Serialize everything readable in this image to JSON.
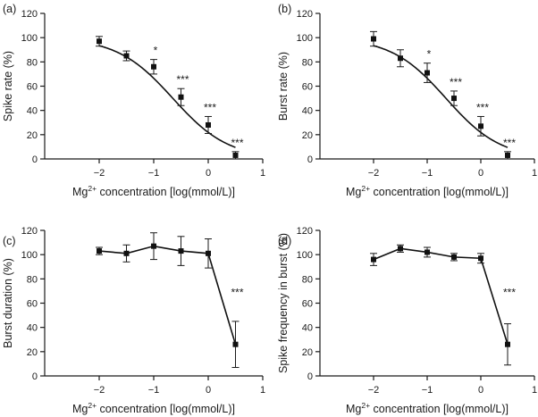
{
  "chart_data": [
    {
      "panel": "(a)",
      "type": "scatter",
      "fit": "sigmoid",
      "xlabel": "Mg²⁺ concentration [log(mmol/L)]",
      "ylabel": "Spike rate (%)",
      "xlim": [
        -3,
        1
      ],
      "ylim": [
        0,
        120
      ],
      "xticks": [
        -2,
        -1,
        0,
        1
      ],
      "yticks": [
        0,
        20,
        40,
        60,
        80,
        100,
        120
      ],
      "x": [
        -2,
        -1.5,
        -1,
        -0.5,
        0,
        0.5
      ],
      "y": [
        97,
        85,
        76,
        51,
        28,
        3
      ],
      "err": [
        4,
        4,
        6,
        7,
        7,
        3
      ],
      "significance": [
        "",
        "",
        "*",
        "***",
        "***",
        "***"
      ],
      "fit_curve": {
        "bottom": 0,
        "top": 100,
        "log_ec50": -0.65,
        "hill_slope": -0.85
      }
    },
    {
      "panel": "(b)",
      "type": "scatter",
      "fit": "sigmoid",
      "xlabel": "Mg²⁺ concentration [log(mmol/L)]",
      "ylabel": "Burst rate (%)",
      "xlim": [
        -3,
        1
      ],
      "ylim": [
        0,
        120
      ],
      "xticks": [
        -2,
        -1,
        0,
        1
      ],
      "yticks": [
        0,
        20,
        40,
        60,
        80,
        100,
        120
      ],
      "x": [
        -2,
        -1.5,
        -1,
        -0.5,
        0,
        0.5
      ],
      "y": [
        99,
        83,
        71,
        50,
        27,
        3
      ],
      "err": [
        6,
        7,
        8,
        6,
        8,
        3
      ],
      "significance": [
        "",
        "",
        "*",
        "***",
        "***",
        "***"
      ],
      "fit_curve": {
        "bottom": 0,
        "top": 100,
        "log_ec50": -0.65,
        "hill_slope": -0.85
      }
    },
    {
      "panel": "(c)",
      "type": "line",
      "xlabel": "Mg²⁺ concentration [log(mmol/L)]",
      "ylabel": "Burst duration (%)",
      "xlim": [
        -3,
        1
      ],
      "ylim": [
        0,
        120
      ],
      "xticks": [
        -2,
        -1,
        0,
        1
      ],
      "yticks": [
        0,
        20,
        40,
        60,
        80,
        100,
        120
      ],
      "x": [
        -2,
        -1.5,
        -1,
        -0.5,
        0,
        0.5
      ],
      "y": [
        103,
        101,
        107,
        103,
        101,
        26
      ],
      "err": [
        3,
        7,
        11,
        12,
        12,
        19
      ],
      "significance": [
        "",
        "",
        "",
        "",
        "",
        "***"
      ]
    },
    {
      "panel": "(d)",
      "type": "line",
      "xlabel": "Mg²⁺ concentration [log(mmol/L)]",
      "ylabel": "Spike frequency in burst (%)",
      "xlim": [
        -3,
        1
      ],
      "ylim": [
        0,
        120
      ],
      "xticks": [
        -2,
        -1,
        0,
        1
      ],
      "yticks": [
        0,
        20,
        40,
        60,
        80,
        100,
        120
      ],
      "x": [
        -2,
        -1.5,
        -1,
        -0.5,
        0,
        0.5
      ],
      "y": [
        96,
        105,
        102,
        98,
        97,
        26
      ],
      "err": [
        5,
        3,
        4,
        3,
        4,
        17
      ],
      "significance": [
        "",
        "",
        "",
        "",
        "",
        "***"
      ]
    }
  ]
}
